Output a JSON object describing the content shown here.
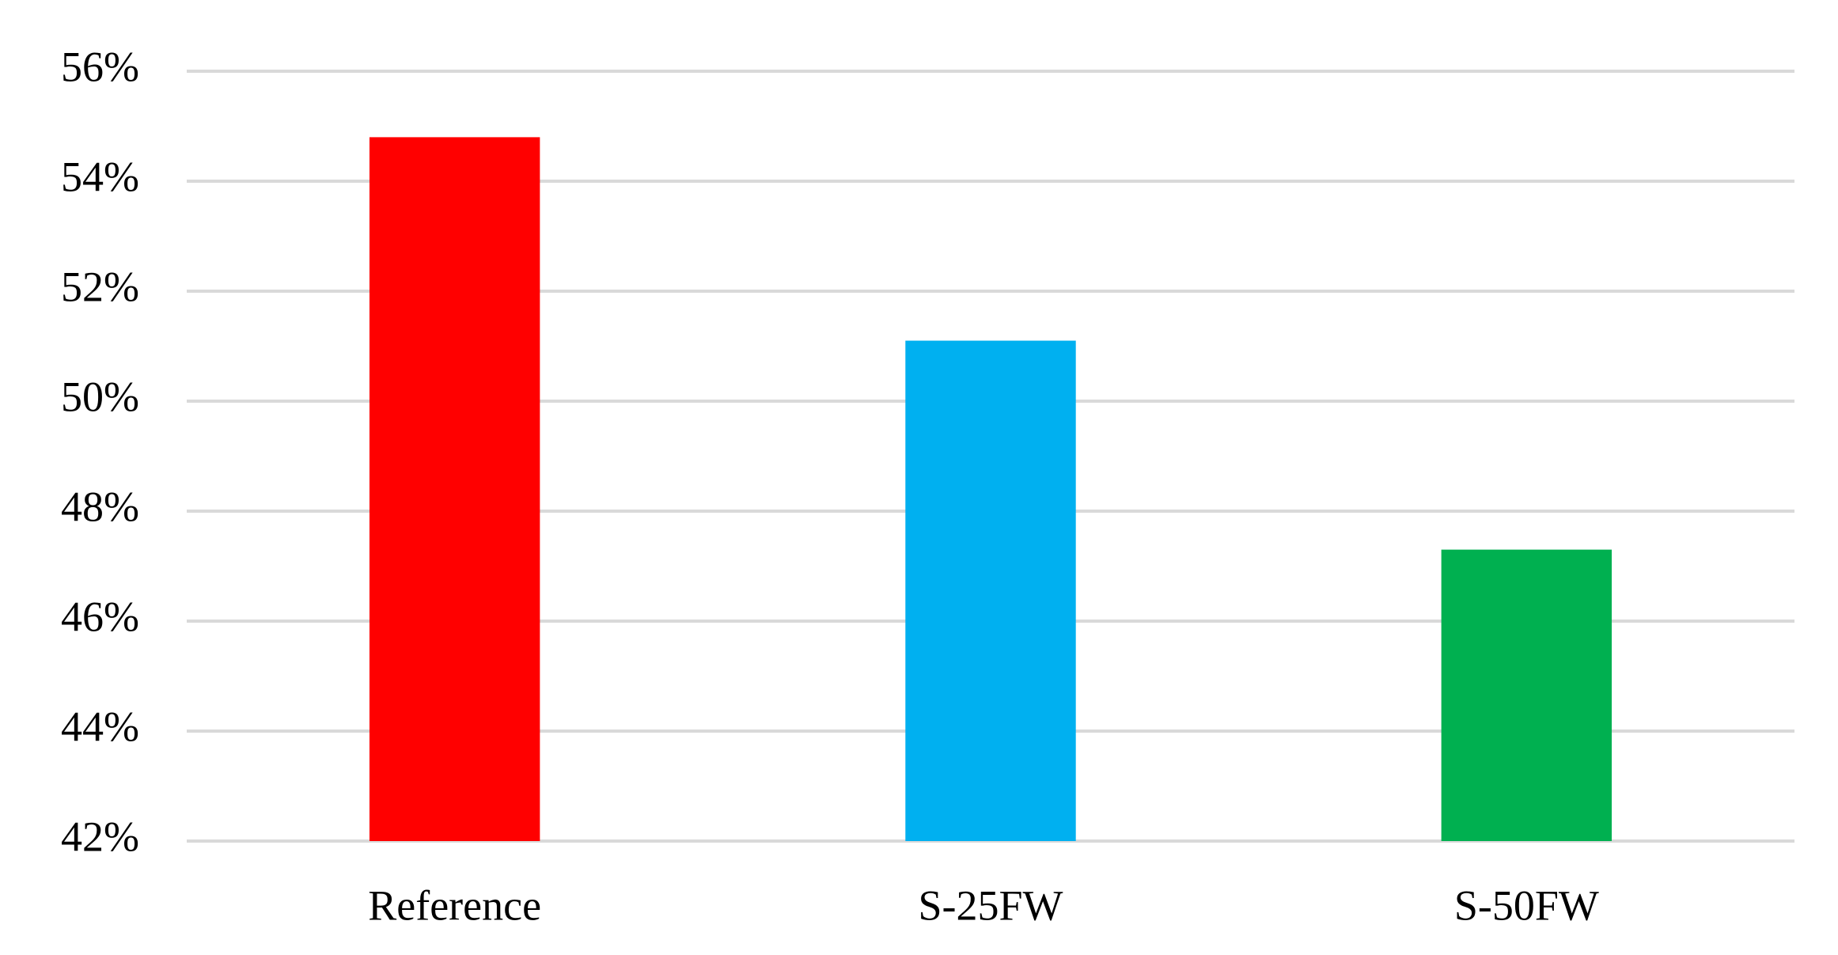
{
  "chart_data": {
    "type": "bar",
    "categories": [
      "Reference",
      "S-25FW",
      "S-50FW"
    ],
    "values": [
      54.8,
      51.1,
      47.3
    ],
    "colors": [
      "#ff0000",
      "#00b0f0",
      "#00b050"
    ],
    "ylim": [
      42,
      56
    ],
    "yticks": [
      {
        "value": 42,
        "label": "42%"
      },
      {
        "value": 44,
        "label": "44%"
      },
      {
        "value": 46,
        "label": "46%"
      },
      {
        "value": 48,
        "label": "48%"
      },
      {
        "value": 50,
        "label": "50%"
      },
      {
        "value": 52,
        "label": "52%"
      },
      {
        "value": 54,
        "label": "54%"
      },
      {
        "value": 56,
        "label": "56%"
      }
    ],
    "grid": true
  }
}
